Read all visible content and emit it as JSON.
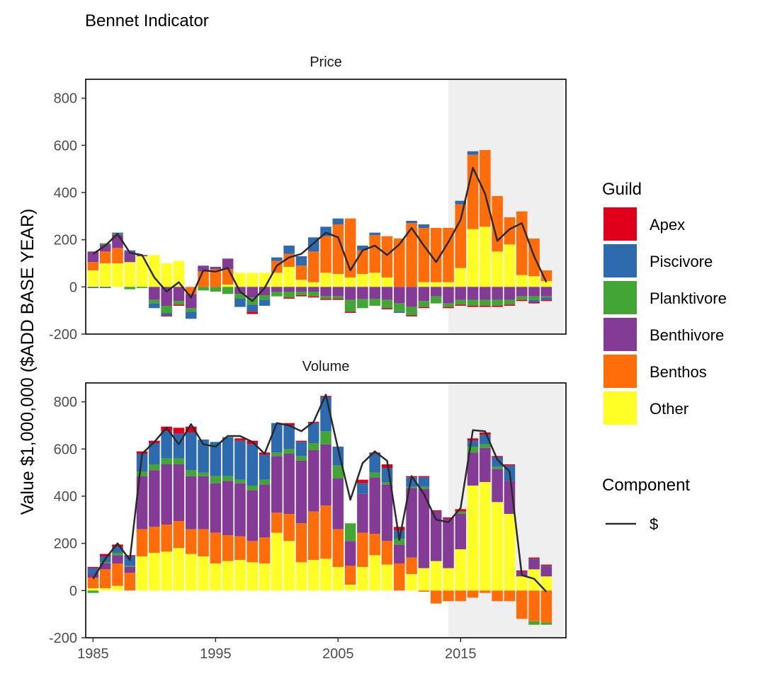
{
  "chart_data": {
    "type": "bar",
    "stacked": true,
    "title": "Bennet Indicator",
    "ylabel": "Value $1,000,000 ($ADD BASE YEAR)",
    "xlabel": "",
    "x_ticks": [
      1985,
      1995,
      2005,
      2015
    ],
    "y_ticks": [
      -200,
      0,
      200,
      400,
      600,
      800
    ],
    "ylim": [
      -200,
      880
    ],
    "xlim": [
      1984.4,
      2023.6
    ],
    "shaded_region": [
      2014,
      2023.4
    ],
    "legend_title": "Guild",
    "legend_position": "right",
    "guilds": [
      {
        "name": "Apex",
        "color": "#E0001B"
      },
      {
        "name": "Piscivore",
        "color": "#2E6AAE"
      },
      {
        "name": "Planktivore",
        "color": "#44A537"
      },
      {
        "name": "Benthivore",
        "color": "#833B96"
      },
      {
        "name": "Benthos",
        "color": "#FF6D0A"
      },
      {
        "name": "Other",
        "color": "#FFFF26"
      }
    ],
    "line_legend_title": "Component",
    "line_legend_label": "$",
    "line_color": "#2a2a2a",
    "years": [
      1985,
      1986,
      1987,
      1988,
      1989,
      1990,
      1991,
      1992,
      1993,
      1994,
      1995,
      1996,
      1997,
      1998,
      1999,
      2000,
      2001,
      2002,
      2003,
      2004,
      2005,
      2006,
      2007,
      2008,
      2009,
      2010,
      2011,
      2012,
      2013,
      2014,
      2015,
      2016,
      2017,
      2018,
      2019,
      2020,
      2021,
      2022
    ],
    "panels": [
      {
        "name": "Price",
        "series": {
          "Other": [
            70,
            100,
            100,
            105,
            130,
            135,
            100,
            110,
            0,
            0,
            0,
            10,
            60,
            60,
            60,
            60,
            85,
            30,
            20,
            60,
            55,
            40,
            55,
            60,
            40,
            0,
            0,
            20,
            20,
            20,
            80,
            245,
            255,
            150,
            180,
            50,
            45,
            25
          ],
          "Benthos": [
            35,
            50,
            65,
            0,
            0,
            0,
            0,
            0,
            -30,
            65,
            75,
            65,
            0,
            0,
            0,
            50,
            55,
            60,
            130,
            155,
            210,
            250,
            100,
            160,
            175,
            205,
            270,
            230,
            230,
            230,
            270,
            315,
            325,
            235,
            115,
            270,
            160,
            45
          ],
          "Benthivore": [
            45,
            30,
            55,
            45,
            5,
            -55,
            -80,
            -60,
            -60,
            25,
            10,
            45,
            -30,
            -45,
            -35,
            -20,
            -20,
            -20,
            -20,
            -40,
            -40,
            -55,
            -50,
            -50,
            -55,
            -70,
            -85,
            -60,
            -40,
            -70,
            -55,
            -55,
            -55,
            -55,
            -55,
            -40,
            -40,
            -40
          ],
          "Planktivore": [
            0,
            5,
            5,
            -10,
            -5,
            -15,
            -30,
            -15,
            -15,
            -15,
            -20,
            -30,
            -20,
            -30,
            -20,
            -20,
            -25,
            -15,
            -20,
            -10,
            -10,
            -50,
            -40,
            -30,
            -35,
            -35,
            -35,
            -25,
            -30,
            -15,
            -20,
            -25,
            -25,
            -25,
            -20,
            -15,
            -15,
            -5
          ],
          "Piscivore": [
            -5,
            -5,
            5,
            5,
            0,
            -20,
            -10,
            0,
            -30,
            0,
            0,
            0,
            -35,
            -30,
            -25,
            15,
            35,
            40,
            60,
            40,
            25,
            0,
            20,
            10,
            0,
            -5,
            10,
            15,
            0,
            0,
            15,
            15,
            0,
            0,
            0,
            0,
            -10,
            -10
          ],
          "Apex": [
            0,
            0,
            0,
            0,
            0,
            0,
            -5,
            -5,
            0,
            0,
            0,
            0,
            0,
            -10,
            0,
            0,
            -5,
            -5,
            -5,
            -5,
            -5,
            -5,
            0,
            0,
            -5,
            0,
            -5,
            -5,
            0,
            -5,
            -5,
            -5,
            -5,
            -5,
            -5,
            -5,
            -5,
            -5
          ],
          "total": [
            140,
            175,
            225,
            145,
            135,
            40,
            -20,
            20,
            -45,
            70,
            65,
            80,
            -20,
            -60,
            -5,
            90,
            125,
            140,
            185,
            230,
            210,
            70,
            155,
            175,
            135,
            180,
            250,
            175,
            105,
            190,
            285,
            505,
            395,
            195,
            245,
            270,
            130,
            20
          ]
        }
      },
      {
        "name": "Volume",
        "series": {
          "Other": [
            10,
            10,
            20,
            0,
            145,
            160,
            165,
            180,
            155,
            145,
            115,
            125,
            130,
            120,
            115,
            245,
            210,
            120,
            130,
            135,
            100,
            25,
            100,
            150,
            110,
            0,
            70,
            95,
            125,
            95,
            175,
            445,
            460,
            375,
            325,
            60,
            90,
            60
          ],
          "Benthos": [
            45,
            80,
            95,
            75,
            115,
            110,
            115,
            115,
            105,
            115,
            130,
            110,
            100,
            90,
            110,
            85,
            115,
            165,
            205,
            225,
            160,
            80,
            145,
            90,
            100,
            115,
            70,
            -5,
            -55,
            -45,
            -45,
            -30,
            -10,
            -45,
            -45,
            -120,
            -130,
            -135
          ],
          "Benthivore": [
            15,
            25,
            35,
            25,
            225,
            240,
            255,
            240,
            225,
            225,
            210,
            230,
            225,
            215,
            225,
            240,
            255,
            265,
            260,
            260,
            215,
            105,
            165,
            240,
            240,
            80,
            295,
            335,
            210,
            210,
            150,
            140,
            145,
            140,
            140,
            20,
            40,
            40
          ],
          "Planktivore": [
            -10,
            5,
            10,
            5,
            20,
            25,
            25,
            25,
            25,
            15,
            30,
            20,
            15,
            20,
            20,
            15,
            20,
            20,
            30,
            55,
            55,
            75,
            0,
            20,
            10,
            25,
            5,
            10,
            0,
            0,
            10,
            25,
            15,
            10,
            0,
            0,
            -15,
            -10
          ],
          "Piscivore": [
            25,
            25,
            25,
            40,
            75,
            90,
            115,
            105,
            160,
            140,
            145,
            165,
            165,
            175,
            105,
            125,
            100,
            60,
            85,
            145,
            80,
            0,
            45,
            80,
            60,
            35,
            40,
            40,
            0,
            0,
            0,
            25,
            40,
            40,
            65,
            0,
            5,
            5
          ],
          "Apex": [
            5,
            10,
            10,
            5,
            10,
            10,
            20,
            25,
            25,
            0,
            0,
            0,
            10,
            15,
            10,
            0,
            10,
            5,
            5,
            5,
            0,
            0,
            15,
            5,
            15,
            15,
            5,
            5,
            5,
            5,
            10,
            10,
            10,
            5,
            5,
            5,
            5,
            5
          ],
          "total": [
            50,
            135,
            200,
            130,
            580,
            630,
            690,
            620,
            705,
            620,
            610,
            655,
            655,
            630,
            580,
            710,
            700,
            675,
            715,
            830,
            600,
            385,
            540,
            590,
            550,
            215,
            485,
            410,
            300,
            290,
            350,
            680,
            675,
            555,
            505,
            65,
            50,
            -5
          ]
        }
      }
    ]
  }
}
